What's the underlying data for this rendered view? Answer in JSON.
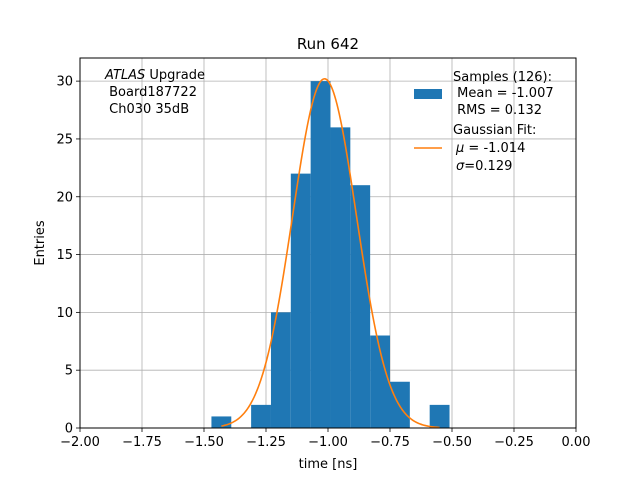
{
  "chart_data": {
    "type": "bar",
    "title": "Run 642",
    "xlabel": "time [ns]",
    "ylabel": "Entries",
    "xlim": [
      -2.0,
      0.0
    ],
    "ylim": [
      0,
      32
    ],
    "x_ticks": [
      "−2.00",
      "−1.75",
      "−1.50",
      "−1.25",
      "−1.00",
      "−0.75",
      "−0.50",
      "−0.25",
      "0.00"
    ],
    "x_tick_values": [
      -2.0,
      -1.75,
      -1.5,
      -1.25,
      -1.0,
      -0.75,
      -0.5,
      -0.25,
      0.0
    ],
    "y_ticks": [
      "0",
      "5",
      "10",
      "15",
      "20",
      "25",
      "30"
    ],
    "y_tick_values": [
      0,
      5,
      10,
      15,
      20,
      25,
      30
    ],
    "grid": true,
    "bin_edges": [
      -1.47,
      -1.39,
      -1.31,
      -1.23,
      -1.15,
      -1.07,
      -0.99,
      -0.91,
      -0.83,
      -0.75,
      -0.67,
      -0.59,
      -0.51
    ],
    "counts": [
      1,
      0,
      2,
      10,
      22,
      30,
      26,
      21,
      8,
      4,
      0,
      2
    ],
    "histogram_color": "#1f77b4",
    "fit": {
      "type": "gaussian",
      "mu": -1.014,
      "sigma": 0.129,
      "amplitude": 30.2,
      "x_range": [
        -1.43,
        -0.55
      ],
      "color": "#ff7f0e"
    },
    "legend": {
      "placement": "top-right",
      "samples_line1": "Samples (126):",
      "samples_line2": " Mean = -1.007",
      "samples_line3": " RMS = 0.132",
      "fit_line1": "Gaussian Fit:",
      "fit_line2_sym": "μ",
      "fit_line2_rest": " = -1.014",
      "fit_line3_sym": "σ",
      "fit_line3_rest": "=0.129"
    },
    "annotation": {
      "italic": "ATLAS",
      "rest": " Upgrade",
      "line2": " Board187722",
      "line3": " Ch030 35dB"
    }
  }
}
